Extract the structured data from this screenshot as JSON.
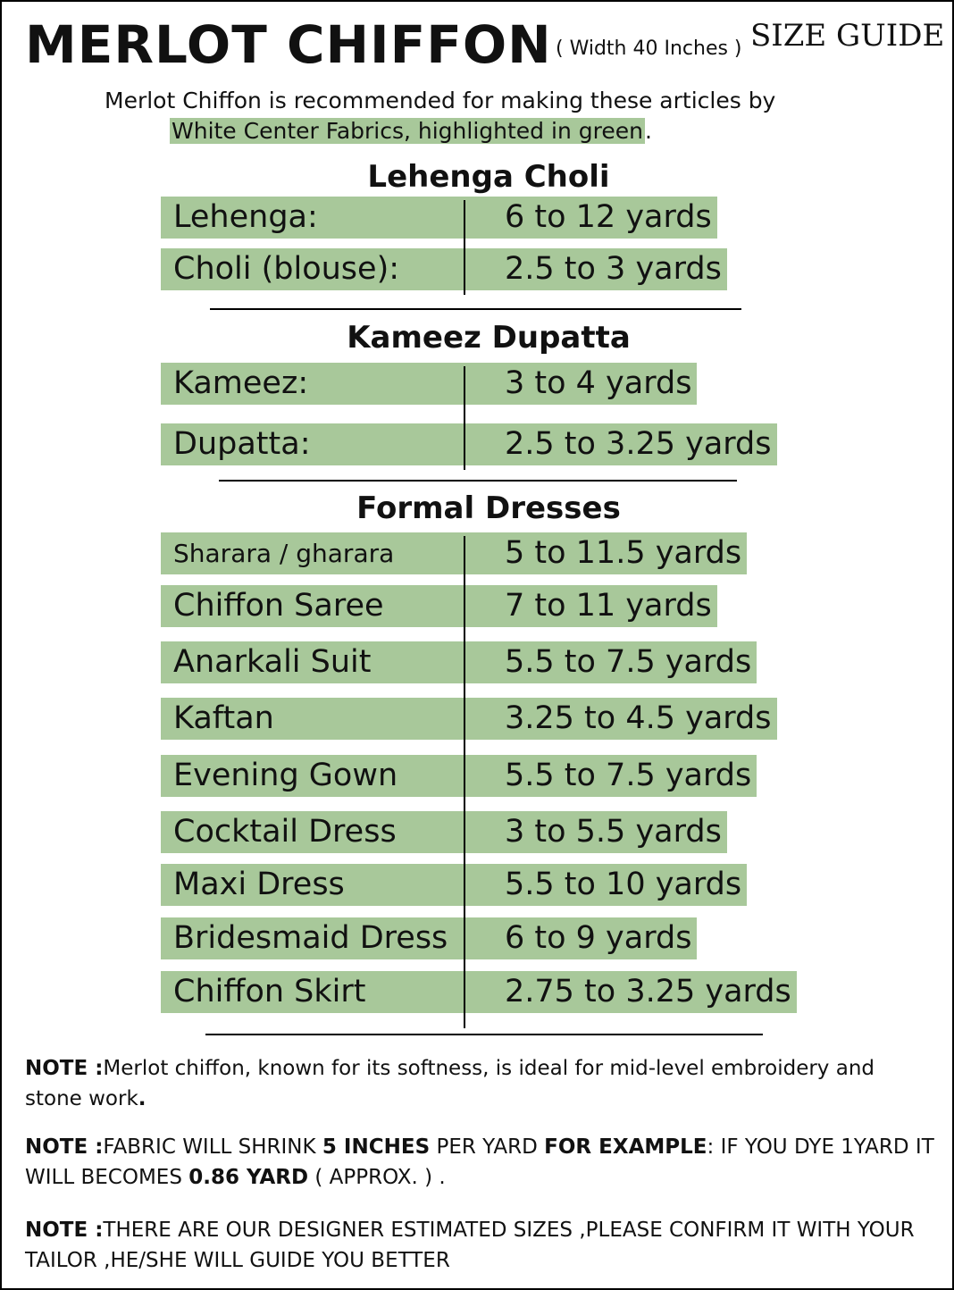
{
  "header": {
    "title": "MERLOT CHIFFON",
    "width_note": "( Width 40 Inches )",
    "guide": "SIZE GUIDE"
  },
  "intro": {
    "line1": "Merlot Chiffon is recommended for making these articles by",
    "highlight": "White Center Fabrics,  highlighted in green",
    "period": "."
  },
  "sections": [
    {
      "title": "Lehenga Choli",
      "rows": [
        [
          "Lehenga:",
          "6 to 12 yards"
        ],
        [
          "Choli (blouse):",
          "2.5 to 3 yards"
        ]
      ]
    },
    {
      "title": "Kameez Dupatta",
      "rows": [
        [
          "Kameez:",
          "3 to 4 yards"
        ],
        [
          "Dupatta:",
          "2.5 to 3.25 yards"
        ]
      ]
    },
    {
      "title": "Formal Dresses",
      "rows": [
        [
          "Sharara / gharara",
          "5  to 11.5 yards"
        ],
        [
          "Chiffon Saree",
          "7 to 11 yards"
        ],
        [
          "Anarkali Suit",
          "5.5 to 7.5 yards"
        ],
        [
          "Kaftan",
          "3.25 to 4.5 yards"
        ],
        [
          "Evening Gown",
          "5.5 to 7.5 yards"
        ],
        [
          "Cocktail Dress",
          "3 to 5.5 yards"
        ],
        [
          "Maxi Dress",
          "5.5 to 10 yards"
        ],
        [
          "Bridesmaid Dress",
          "6 to 9 yards"
        ],
        [
          "Chiffon Skirt",
          "2.75 to 3.25 yards"
        ]
      ]
    }
  ],
  "notes": [
    [
      {
        "text": "NOTE :",
        "bold": true
      },
      {
        "text": "Merlot chiffon, known for its softness, is ideal for mid-level embroidery and stone work",
        "bold": false
      },
      {
        "text": ".",
        "bold": true
      }
    ],
    [
      {
        "text": "NOTE :",
        "bold": true
      },
      {
        "text": "FABRIC WILL SHRINK ",
        "bold": false
      },
      {
        "text": "5 INCHES",
        "bold": true
      },
      {
        "text": " PER YARD ",
        "bold": false
      },
      {
        "text": "FOR EXAMPLE",
        "bold": true
      },
      {
        "text": ": IF YOU DYE 1YARD IT WILL BECOMES ",
        "bold": false
      },
      {
        "text": "0.86 YARD",
        "bold": true
      },
      {
        "text": " ( APPROX. ) .",
        "bold": false
      }
    ],
    [
      {
        "text": "NOTE :",
        "bold": true
      },
      {
        "text": "THERE ARE OUR DESIGNER  ESTIMATED SIZES ,PLEASE CONFIRM IT WITH YOUR TAILOR ,HE/SHE WILL  GUIDE YOU BETTER",
        "bold": false
      }
    ]
  ]
}
